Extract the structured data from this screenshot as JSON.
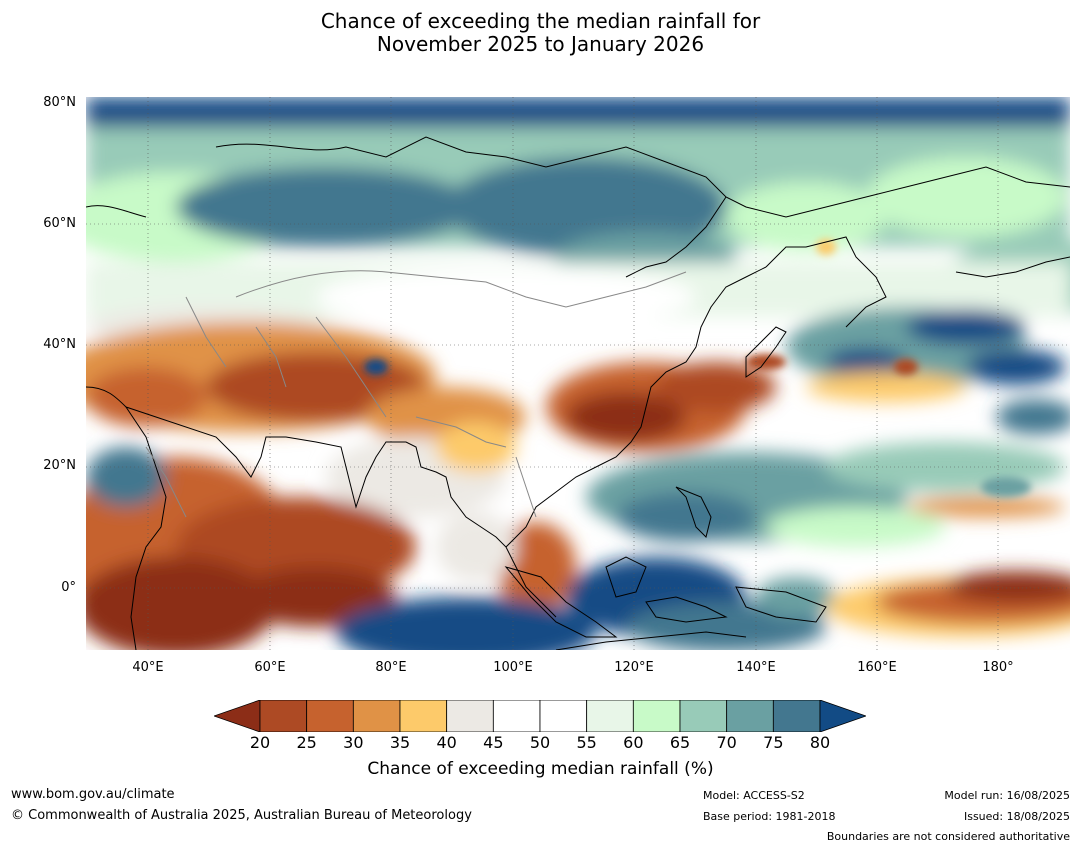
{
  "title": {
    "line1": "Chance of exceeding the median rainfall for",
    "line2": "November 2025 to January 2026"
  },
  "map": {
    "lat_labels": [
      "80°N",
      "60°N",
      "40°N",
      "20°N",
      "0°"
    ],
    "lon_labels": [
      "40°E",
      "60°E",
      "80°E",
      "100°E",
      "120°E",
      "140°E",
      "160°E",
      "180°"
    ],
    "ocean_color": "#ffffff"
  },
  "colorbar": {
    "ticks": [
      "20",
      "25",
      "30",
      "35",
      "40",
      "45",
      "50",
      "55",
      "60",
      "65",
      "70",
      "75",
      "80"
    ],
    "colors": [
      "#8c2d17",
      "#ad4a24",
      "#c6622e",
      "#e09246",
      "#fdca6a",
      "#ece9e4",
      "#ffffff",
      "#ffffff",
      "#e8f6e8",
      "#c8fac8",
      "#98cbb8",
      "#6aa0a2",
      "#43778f",
      "#124b85"
    ],
    "label": "Chance of exceeding median rainfall (%)"
  },
  "footer": {
    "website": "www.bom.gov.au/climate",
    "copyright": "© Commonwealth of Australia 2025, Australian Bureau of Meteorology",
    "model": "Model: ACCESS-S2",
    "base_period": "Base period: 1981-2018",
    "model_run": "Model run: 16/08/2025",
    "issued": "Issued: 18/08/2025",
    "boundaries": "Boundaries are not considered authoritative"
  }
}
